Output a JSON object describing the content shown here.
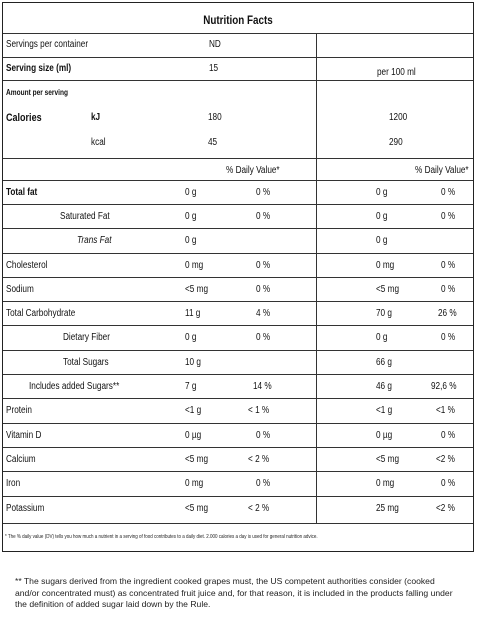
{
  "title": "Nutrition Facts",
  "servings_per_container": {
    "label": "Servings per container",
    "value": "ND"
  },
  "serving_size": {
    "label": "Serving size (ml)",
    "value": "15",
    "per100": "per 100 ml"
  },
  "amount_per_serving": "Amount per serving",
  "calories": {
    "label": "Calories",
    "kj_label": "kJ",
    "kj": "180",
    "kj_100": "1200",
    "kcal_label": "kcal",
    "kcal": "45",
    "kcal_100": "290"
  },
  "dv_header": "% Daily Value*",
  "rows": [
    {
      "name": "Total fat",
      "amt": "0 g",
      "dv": "0 %",
      "amt100": "0 g",
      "dv100": "0 %"
    },
    {
      "name": "Saturated Fat",
      "amt": "0 g",
      "dv": "0 %",
      "amt100": "0 g",
      "dv100": "0 %"
    },
    {
      "name": "Trans Fat",
      "amt": "0 g",
      "dv": "",
      "amt100": "0 g",
      "dv100": ""
    },
    {
      "name": "Cholesterol",
      "amt": "0 mg",
      "dv": "0 %",
      "amt100": "0 mg",
      "dv100": "0 %"
    },
    {
      "name": "Sodium",
      "amt": "<5 mg",
      "dv": "0 %",
      "amt100": "<5 mg",
      "dv100": "0 %"
    },
    {
      "name": "Total Carbohydrate",
      "amt": "11 g",
      "dv": "4 %",
      "amt100": "70 g",
      "dv100": "26 %"
    },
    {
      "name": "Dietary Fiber",
      "amt": "0 g",
      "dv": "0 %",
      "amt100": "0 g",
      "dv100": "0 %"
    },
    {
      "name": "Total Sugars",
      "amt": "10 g",
      "dv": "",
      "amt100": "66 g",
      "dv100": ""
    },
    {
      "name": "Includes added Sugars**",
      "amt": "7 g",
      "dv": "14 %",
      "amt100": "46 g",
      "dv100": "92,6 %"
    },
    {
      "name": "Protein",
      "amt": "<1 g",
      "dv": "< 1 %",
      "amt100": "<1 g",
      "dv100": "<1 %"
    },
    {
      "name": "Vitamin D",
      "amt": "0 µg",
      "dv": "0 %",
      "amt100": "0 µg",
      "dv100": "0 %"
    },
    {
      "name": "Calcium",
      "amt": "<5 mg",
      "dv": "< 2 %",
      "amt100": "<5 mg",
      "dv100": "<2 %"
    },
    {
      "name": "Iron",
      "amt": "0 mg",
      "dv": "0 %",
      "amt100": "0 mg",
      "dv100": "0 %"
    },
    {
      "name": "Potassium",
      "amt": "<5 mg",
      "dv": "< 2 %",
      "amt100": "25 mg",
      "dv100": "<2 %"
    }
  ],
  "footnote": "* The % daily value (DV) tells you how much a nutrient in a serving of food contributes to a daily diet. 2.000 calories a day is used for general nutrition advice.",
  "note": "** The sugars derived from the ingredient cooked grapes must, the US competent authorities consider (cooked and/or concentrated must) as concentrated fruit juice and, for that reason, it is included in the products falling under the definition of added sugar laid down by the Rule."
}
